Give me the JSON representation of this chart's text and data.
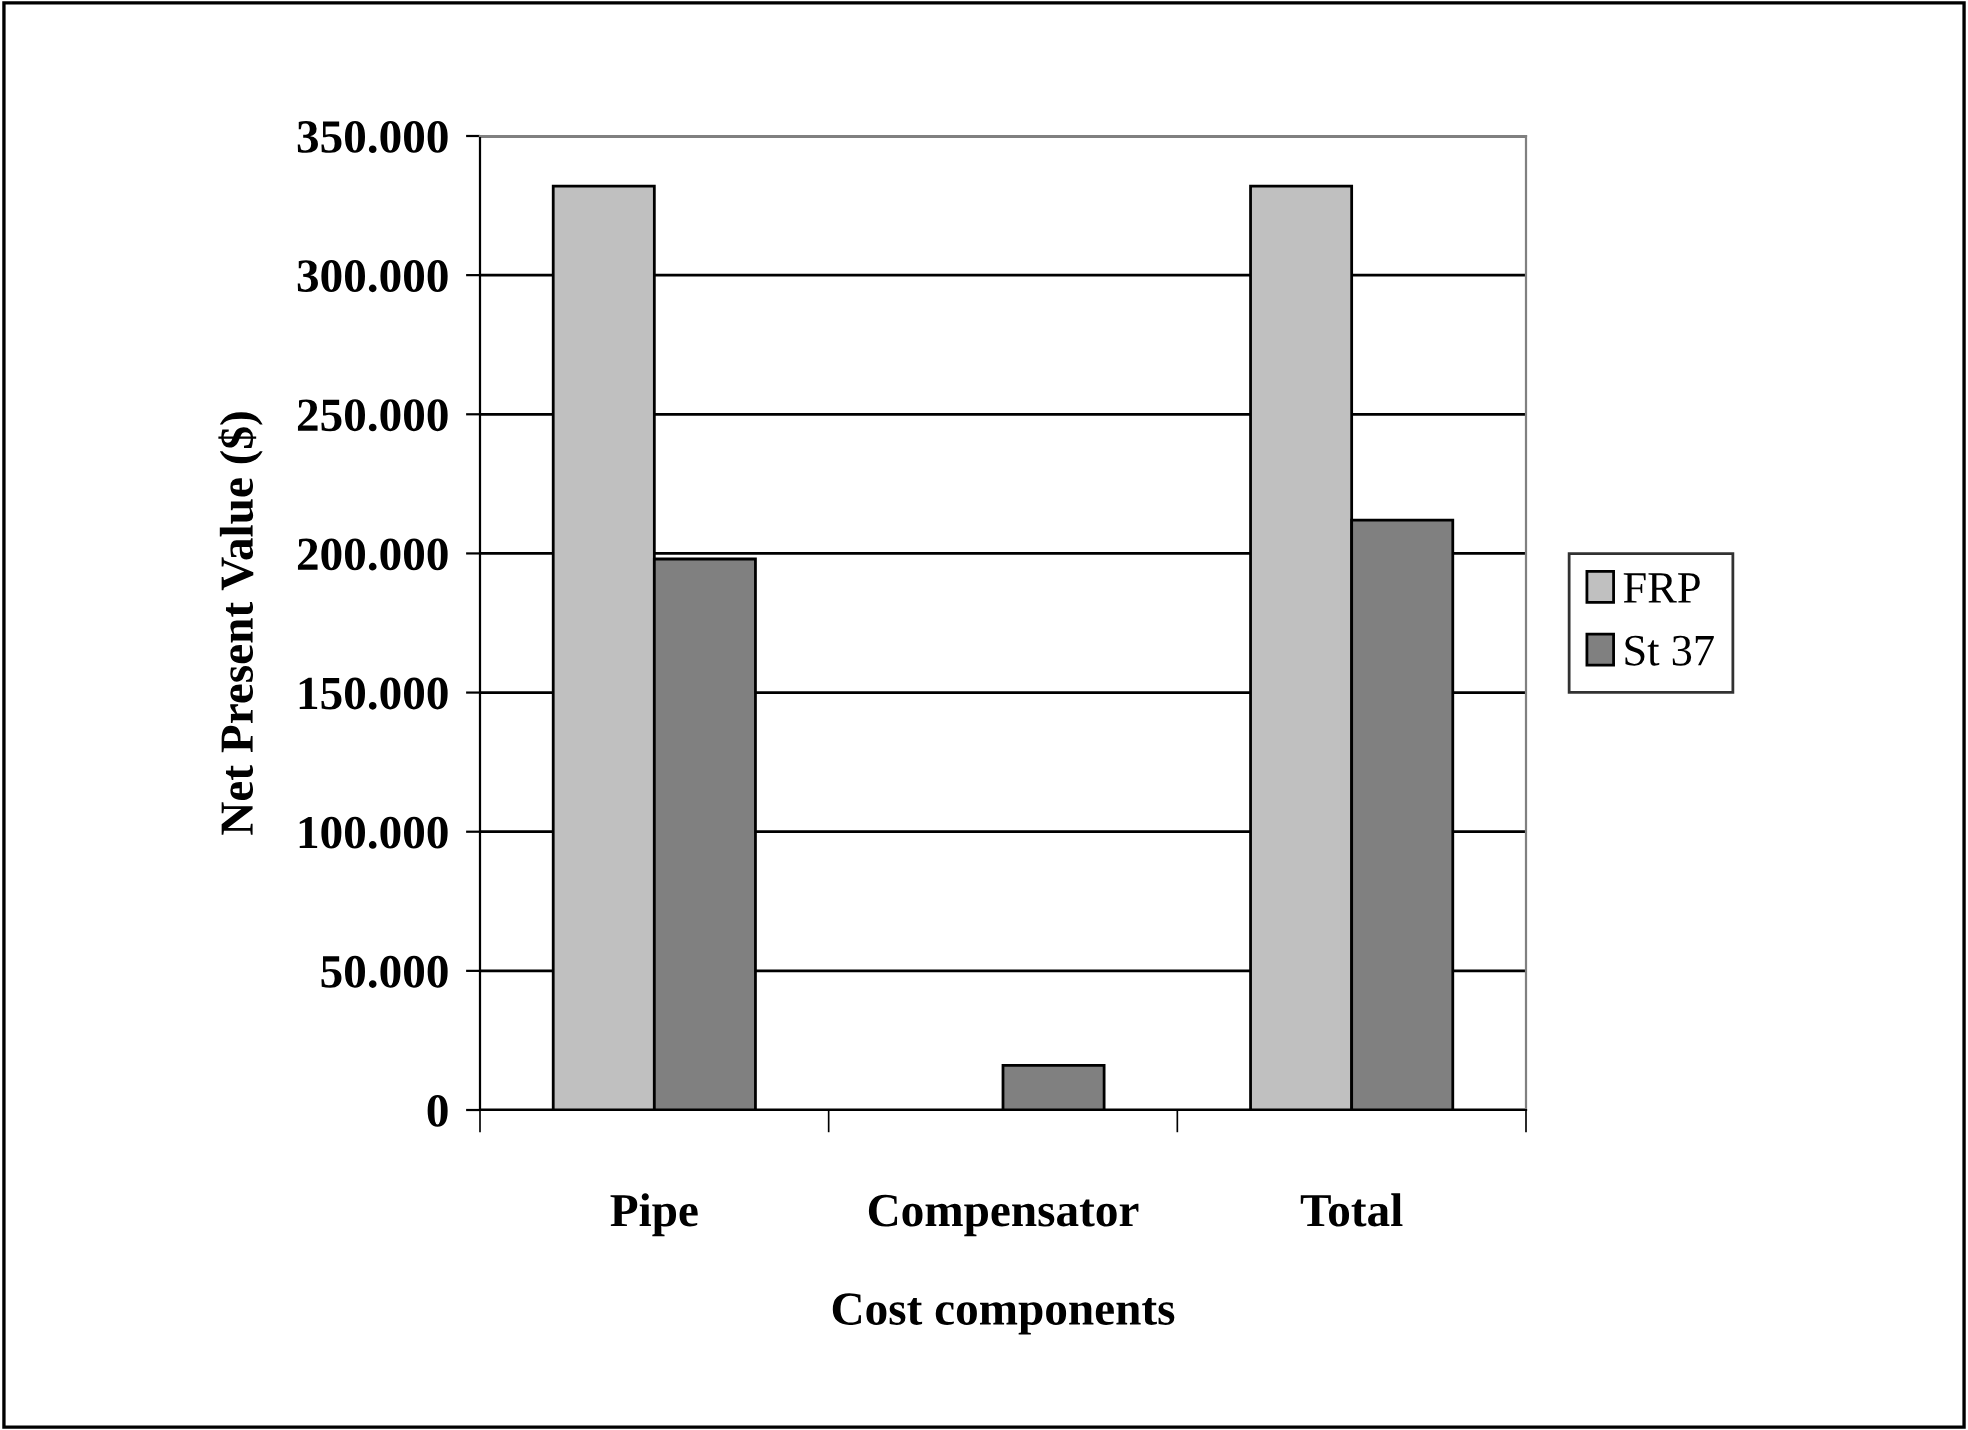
{
  "chart_data": {
    "type": "bar",
    "xlabel": "Cost components",
    "ylabel": "Net Present Value ($)",
    "categories": [
      "Pipe",
      "Compensator",
      "Total"
    ],
    "series": [
      {
        "name": "FRP",
        "color": "#c0c0c0",
        "values": [
          332000,
          null,
          332000
        ]
      },
      {
        "name": "St 37",
        "color": "#808080",
        "values": [
          198000,
          16000,
          212000
        ]
      }
    ],
    "ylim": [
      0,
      350000
    ],
    "yticks": [
      {
        "value": 0,
        "label": "0"
      },
      {
        "value": 50000,
        "label": "50.000"
      },
      {
        "value": 100000,
        "label": "100.000"
      },
      {
        "value": 150000,
        "label": "150.000"
      },
      {
        "value": 200000,
        "label": "200.000"
      },
      {
        "value": 250000,
        "label": "250.000"
      },
      {
        "value": 300000,
        "label": "300.000"
      },
      {
        "value": 350000,
        "label": "350.000"
      }
    ],
    "grid": "y",
    "legend": "right"
  }
}
